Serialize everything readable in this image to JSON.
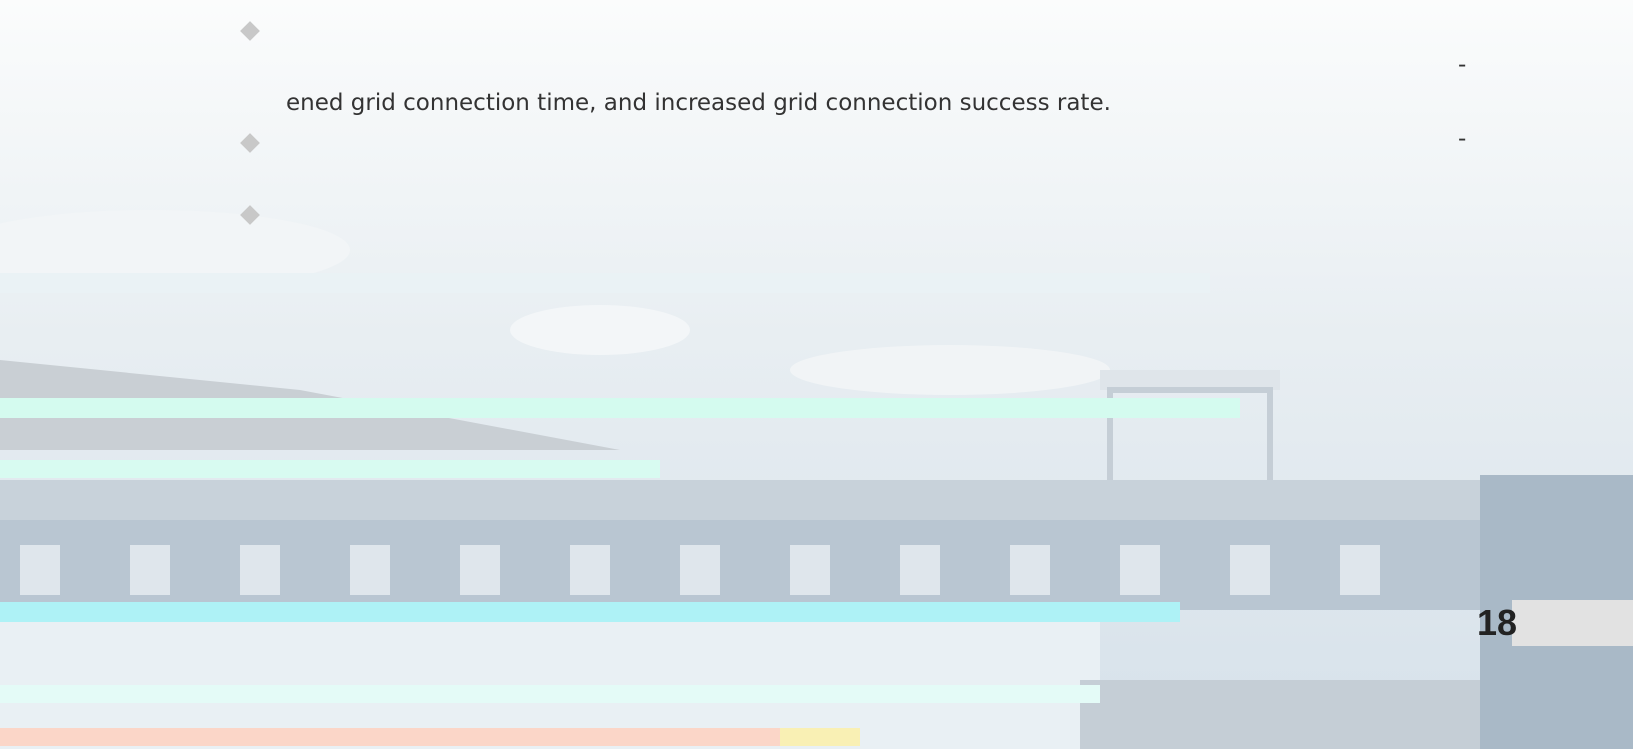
{
  "bullets": [
    {
      "lines": [
        "-",
        "ened grid connection time, and increased grid connection success rate."
      ]
    },
    {
      "lines": [
        "-"
      ]
    }
  ],
  "page_number": "18"
}
